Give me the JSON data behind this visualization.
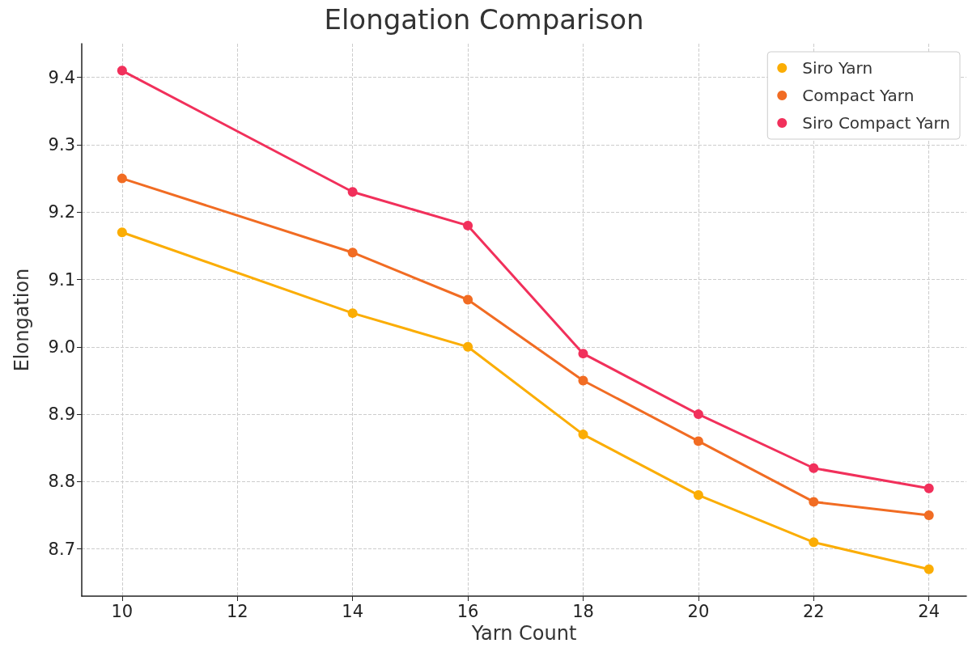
{
  "chart_data": {
    "type": "line",
    "title": "Elongation Comparison",
    "xlabel": "Yarn Count",
    "ylabel": "Elongation",
    "x": [
      10,
      14,
      16,
      18,
      20,
      22,
      24
    ],
    "series": [
      {
        "name": "Siro Yarn",
        "color": "#fbad04",
        "values": [
          9.17,
          9.05,
          9.0,
          8.87,
          8.78,
          8.71,
          8.67
        ]
      },
      {
        "name": "Compact Yarn",
        "color": "#f16c23",
        "values": [
          9.25,
          9.14,
          9.07,
          8.95,
          8.86,
          8.77,
          8.75
        ]
      },
      {
        "name": "Siro Compact Yarn",
        "color": "#f1305b",
        "values": [
          9.41,
          9.23,
          9.18,
          8.99,
          8.9,
          8.82,
          8.79
        ]
      }
    ],
    "xlim": [
      9.3,
      24.65
    ],
    "xticks": [
      10,
      12,
      14,
      16,
      18,
      20,
      22,
      24
    ],
    "ylim": [
      8.63,
      9.45
    ],
    "yticks": [
      8.7,
      8.8,
      8.9,
      {
        "value": 9,
        "label": "9.0"
      },
      9.1,
      9.2,
      9.3,
      9.4
    ],
    "grid": true,
    "legend": "top right",
    "marker": "circle",
    "line_style": "solid"
  }
}
